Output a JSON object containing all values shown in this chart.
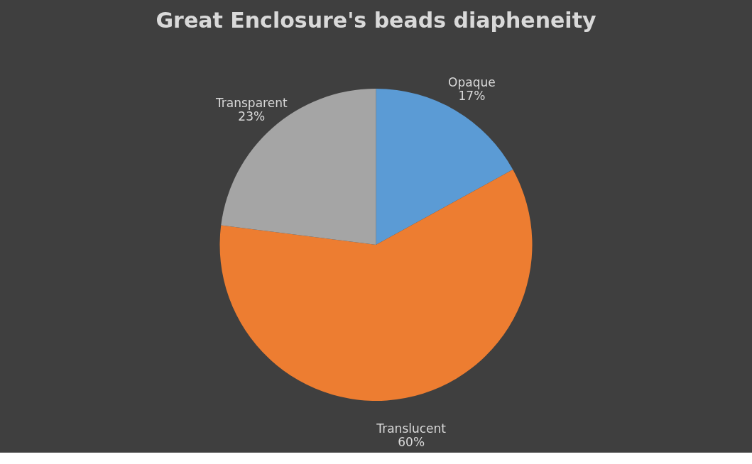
{
  "chart_data": {
    "type": "pie",
    "title": "Great Enclosure's beads diapheneity",
    "categories": [
      "Opaque",
      "Translucent",
      "Transparent"
    ],
    "values": [
      17,
      60,
      23
    ],
    "colors": [
      "#5b9bd5",
      "#ed7d31",
      "#a5a5a5"
    ],
    "value_labels": [
      "17%",
      "60%",
      "23%"
    ],
    "legend": false
  }
}
